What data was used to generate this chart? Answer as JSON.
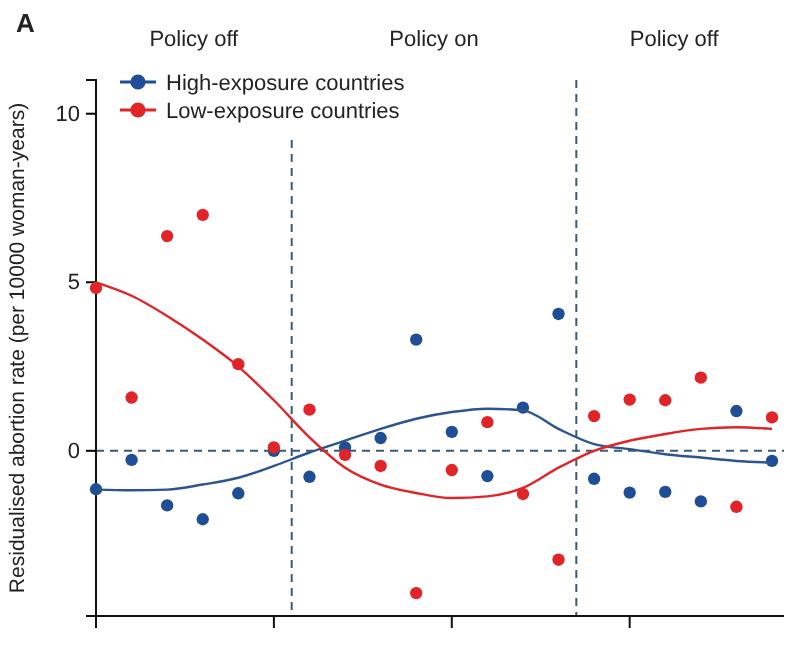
{
  "chart_data": {
    "type": "scatter",
    "ylabel": "Residualised abortion rate (per 10000 woman-years)",
    "annotations": [
      "A",
      "Policy off",
      "Policy on",
      "Policy off"
    ],
    "categories": [
      null,
      null,
      null,
      null,
      null,
      null,
      null,
      null,
      null,
      null,
      null,
      null,
      null,
      null,
      null,
      null,
      null,
      null,
      null,
      null
    ],
    "ylim": [
      -4.9,
      11
    ],
    "yticks": [
      0,
      5,
      10
    ],
    "grid": false,
    "legend": "top left",
    "marker": "circle",
    "series": [
      {
        "name": "High-exposure countries",
        "color": "#1f4e96",
        "values": [
          -1.14,
          -0.27,
          -1.62,
          -2.03,
          -1.26,
          0,
          -0.77,
          0.1,
          0.38,
          3.3,
          0.56,
          -0.75,
          1.28,
          4.06,
          -0.83,
          -1.24,
          -1.22,
          -1.5,
          1.18,
          -0.3
        ]
      },
      {
        "name": "Low-exposure countries",
        "color": "#e02427",
        "values": [
          4.83,
          1.58,
          6.37,
          7.0,
          2.57,
          0.1,
          1.22,
          -0.12,
          -0.45,
          -4.22,
          -0.57,
          0.85,
          -1.28,
          -3.23,
          1.03,
          1.52,
          1.5,
          2.17,
          -1.66,
          0.99
        ]
      },
      {
        "type": "line",
        "color": "#2c5490",
        "marker": "none",
        "values": [
          -1.15,
          -1.17,
          -1.15,
          -1.0,
          -0.8,
          -0.45,
          -0.05,
          0.3,
          0.65,
          0.95,
          1.15,
          1.25,
          1.2,
          0.65,
          0.2,
          0.05,
          -0.1,
          -0.2,
          -0.3,
          -0.35
        ]
      },
      {
        "type": "line",
        "color": "#e02427",
        "marker": "none",
        "values": [
          5.0,
          4.6,
          4.0,
          3.3,
          2.5,
          1.5,
          0.4,
          -0.5,
          -1.0,
          -1.25,
          -1.4,
          -1.35,
          -1.1,
          -0.5,
          0.0,
          0.3,
          0.5,
          0.65,
          0.7,
          0.65
        ]
      }
    ],
    "ref_lines": [
      {
        "axis": "y",
        "value": 0,
        "line_style": "dashed"
      }
    ]
  }
}
